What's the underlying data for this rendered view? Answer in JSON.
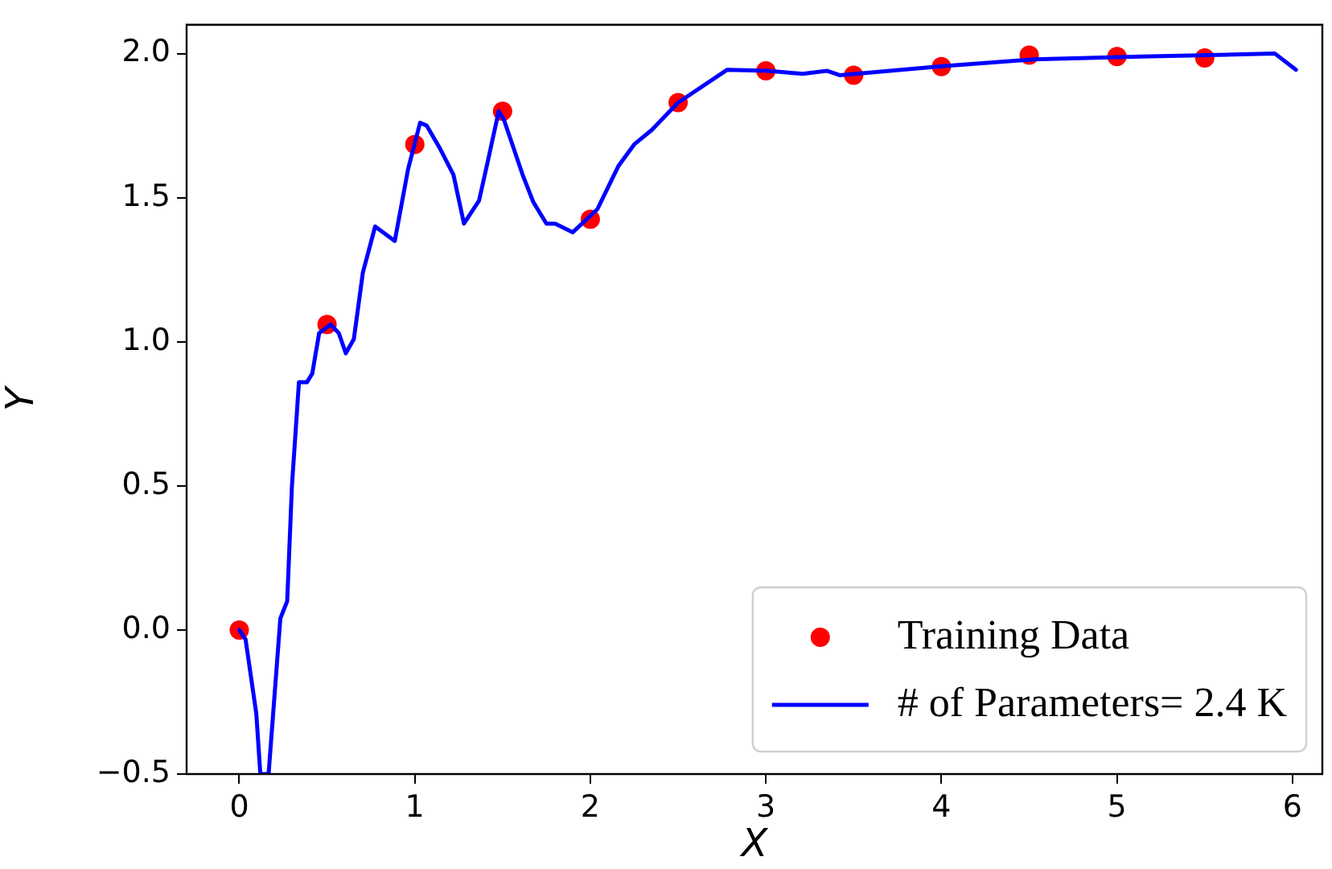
{
  "chart_data": {
    "type": "line",
    "xlabel": "X",
    "ylabel": "Y",
    "xlim": [
      -0.3,
      6.17
    ],
    "ylim": [
      -0.5,
      2.1
    ],
    "xticks": [
      0,
      1,
      2,
      3,
      4,
      5,
      6
    ],
    "yticks": [
      {
        "value": -0.5,
        "label": "−0.5"
      },
      {
        "value": 0,
        "label": "0.0"
      },
      {
        "value": 0.5,
        "label": "0.5"
      },
      {
        "value": 1,
        "label": "1.0"
      },
      {
        "value": 1.5,
        "label": "1.5"
      },
      {
        "value": 2,
        "label": "2.0"
      }
    ],
    "grid": false,
    "legend": "bottom right",
    "series": [
      {
        "name": "Training Data",
        "type": "scatter",
        "marker": "circle",
        "color": "#ff0000",
        "x": [
          0,
          0.5,
          1,
          1.5,
          2,
          2.5,
          3,
          3.5,
          4,
          4.5,
          5,
          5.5
        ],
        "values": [
          0,
          1.06,
          1.685,
          1.8,
          1.425,
          1.83,
          1.94,
          1.925,
          1.955,
          1.995,
          1.99,
          1.985
        ]
      },
      {
        "name": "# of Parameters= 2.4 K",
        "marker": "none",
        "line_style": "solid",
        "color": "#0000ff",
        "x": [
          0,
          0.036,
          0.097,
          0.12,
          0.167,
          0.234,
          0.273,
          0.3,
          0.34,
          0.386,
          0.416,
          0.455,
          0.52,
          0.567,
          0.607,
          0.653,
          0.704,
          0.774,
          0.886,
          0.962,
          1.03,
          1.068,
          1.144,
          1.22,
          1.28,
          1.366,
          1.41,
          1.478,
          1.508,
          1.614,
          1.675,
          1.75,
          1.8,
          1.9,
          2.04,
          2.16,
          2.25,
          2.35,
          2.5,
          2.78,
          3.01,
          3.21,
          3.35,
          3.42,
          4.02,
          4.53,
          5.14,
          5.9,
          6.02
        ],
        "values": [
          0,
          -0.033,
          -0.29,
          -0.5,
          -0.5,
          0.04,
          0.1,
          0.5,
          0.86,
          0.86,
          0.89,
          1.03,
          1.06,
          1.03,
          0.96,
          1.01,
          1.24,
          1.4,
          1.35,
          1.6,
          1.76,
          1.75,
          1.67,
          1.58,
          1.41,
          1.49,
          1.61,
          1.8,
          1.77,
          1.58,
          1.485,
          1.41,
          1.41,
          1.38,
          1.46,
          1.61,
          1.685,
          1.735,
          1.83,
          1.944,
          1.94,
          1.93,
          1.94,
          1.925,
          1.957,
          1.98,
          1.99,
          2.0,
          1.944
        ]
      }
    ]
  }
}
